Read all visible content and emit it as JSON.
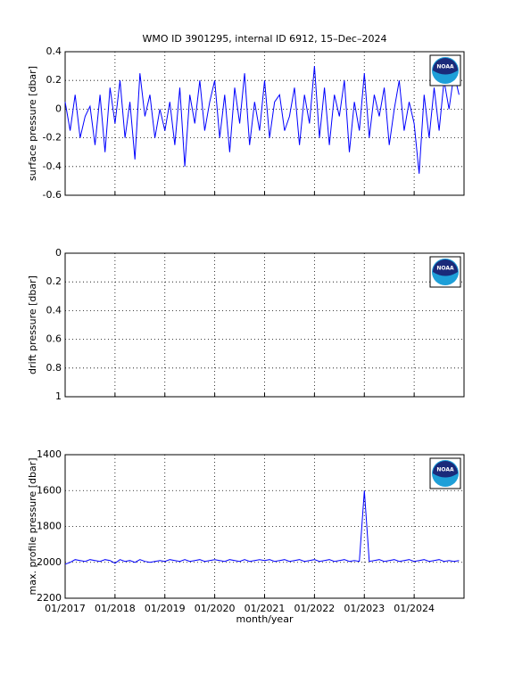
{
  "logo": "NOAA",
  "chart_data": [
    {
      "type": "line",
      "title": "WMO ID 3901295, internal ID 6912, 15–Dec–2024",
      "y_label": "surface pressure [dbar]",
      "xlim": [
        2017,
        2025
      ],
      "ylim": [
        -0.6,
        0.4
      ],
      "yticks": [
        -0.6,
        -0.4,
        -0.2,
        0,
        0.2,
        0.4
      ],
      "grid": true,
      "x": [
        2017.0,
        2017.1,
        2017.2,
        2017.3,
        2017.4,
        2017.5,
        2017.6,
        2017.7,
        2017.8,
        2017.9,
        2018.0,
        2018.1,
        2018.2,
        2018.3,
        2018.4,
        2018.5,
        2018.6,
        2018.7,
        2018.8,
        2018.9,
        2019.0,
        2019.1,
        2019.2,
        2019.3,
        2019.4,
        2019.5,
        2019.6,
        2019.7,
        2019.8,
        2019.9,
        2020.0,
        2020.1,
        2020.2,
        2020.3,
        2020.4,
        2020.5,
        2020.6,
        2020.7,
        2020.8,
        2020.9,
        2021.0,
        2021.1,
        2021.2,
        2021.3,
        2021.4,
        2021.5,
        2021.6,
        2021.7,
        2021.8,
        2021.9,
        2022.0,
        2022.1,
        2022.2,
        2022.3,
        2022.4,
        2022.5,
        2022.6,
        2022.7,
        2022.8,
        2022.9,
        2023.0,
        2023.1,
        2023.2,
        2023.3,
        2023.4,
        2023.5,
        2023.6,
        2023.7,
        2023.8,
        2023.9,
        2024.0,
        2024.1,
        2024.2,
        2024.3,
        2024.4,
        2024.5,
        2024.6,
        2024.7,
        2024.8,
        2024.9
      ],
      "color": "#0000ff",
      "values": [
        0.05,
        -0.15,
        0.1,
        -0.2,
        -0.05,
        0.02,
        -0.25,
        0.1,
        -0.3,
        0.15,
        -0.1,
        0.2,
        -0.2,
        0.05,
        -0.35,
        0.25,
        -0.05,
        0.1,
        -0.2,
        0.0,
        -0.15,
        0.05,
        -0.25,
        0.15,
        -0.4,
        0.1,
        -0.1,
        0.2,
        -0.15,
        0.05,
        0.2,
        -0.2,
        0.1,
        -0.3,
        0.15,
        -0.1,
        0.25,
        -0.25,
        0.05,
        -0.15,
        0.2,
        -0.2,
        0.05,
        0.1,
        -0.15,
        -0.05,
        0.15,
        -0.25,
        0.1,
        -0.1,
        0.3,
        -0.2,
        0.15,
        -0.25,
        0.1,
        -0.05,
        0.2,
        -0.3,
        0.05,
        -0.15,
        0.25,
        -0.2,
        0.1,
        -0.05,
        0.15,
        -0.25,
        0.0,
        0.2,
        -0.15,
        0.05,
        -0.1,
        -0.45,
        0.1,
        -0.2,
        0.15,
        -0.15,
        0.2,
        0.0,
        0.25,
        0.1
      ]
    },
    {
      "type": "line",
      "y_label": "drift pressure [dbar]",
      "xlim": [
        2017,
        2025
      ],
      "ylim": [
        0,
        1
      ],
      "y_reversed": true,
      "yticks": [
        0,
        0.2,
        0.4,
        0.6,
        0.8,
        1
      ],
      "grid": true
    },
    {
      "type": "line",
      "y_label": "max. profile pressure [dbar]",
      "x_label": "month/year",
      "xlim": [
        2017,
        2025
      ],
      "ylim": [
        1400,
        2200
      ],
      "y_reversed": true,
      "yticks": [
        1400,
        1600,
        1800,
        2000,
        2200
      ],
      "grid": true,
      "xticks": [
        {
          "value": 2017,
          "label": "01/2017"
        },
        {
          "value": 2018,
          "label": "01/2018"
        },
        {
          "value": 2019,
          "label": "01/2019"
        },
        {
          "value": 2020,
          "label": "01/2020"
        },
        {
          "value": 2021,
          "label": "01/2021"
        },
        {
          "value": 2022,
          "label": "01/2022"
        },
        {
          "value": 2023,
          "label": "01/2023"
        },
        {
          "value": 2024,
          "label": "01/2024"
        }
      ],
      "x": [
        2017.0,
        2017.1,
        2017.2,
        2017.3,
        2017.4,
        2017.5,
        2017.6,
        2017.7,
        2017.8,
        2017.9,
        2018.0,
        2018.1,
        2018.2,
        2018.3,
        2018.4,
        2018.5,
        2018.6,
        2018.7,
        2018.8,
        2018.9,
        2019.0,
        2019.1,
        2019.2,
        2019.3,
        2019.4,
        2019.5,
        2019.6,
        2019.7,
        2019.8,
        2019.9,
        2020.0,
        2020.1,
        2020.2,
        2020.3,
        2020.4,
        2020.5,
        2020.6,
        2020.7,
        2020.8,
        2020.9,
        2021.0,
        2021.1,
        2021.2,
        2021.3,
        2021.4,
        2021.5,
        2021.6,
        2021.7,
        2021.8,
        2021.9,
        2022.0,
        2022.1,
        2022.2,
        2022.3,
        2022.4,
        2022.5,
        2022.6,
        2022.7,
        2022.8,
        2022.9,
        2023.0,
        2023.1,
        2023.2,
        2023.3,
        2023.4,
        2023.5,
        2023.6,
        2023.7,
        2023.8,
        2023.9,
        2024.0,
        2024.1,
        2024.2,
        2024.3,
        2024.4,
        2024.5,
        2024.6,
        2024.7,
        2024.8,
        2024.9
      ],
      "color": "#0000ff",
      "values": [
        2010,
        2000,
        1985,
        1990,
        1995,
        1985,
        1990,
        1995,
        1985,
        1990,
        2005,
        1985,
        1995,
        1990,
        2000,
        1985,
        1995,
        2000,
        1995,
        1990,
        1995,
        1985,
        1990,
        1995,
        1985,
        1995,
        1990,
        1985,
        1995,
        1990,
        1985,
        1990,
        1995,
        1985,
        1990,
        1995,
        1985,
        1995,
        1990,
        1985,
        1990,
        1985,
        1995,
        1990,
        1985,
        1995,
        1990,
        1985,
        1995,
        1990,
        1985,
        1995,
        1990,
        1985,
        1995,
        1990,
        1985,
        1995,
        1990,
        1995,
        1600,
        1995,
        1990,
        1985,
        1995,
        1990,
        1985,
        1995,
        1990,
        1985,
        1995,
        1990,
        1985,
        1995,
        1990,
        1985,
        1995,
        1990,
        1995,
        1990
      ]
    }
  ]
}
